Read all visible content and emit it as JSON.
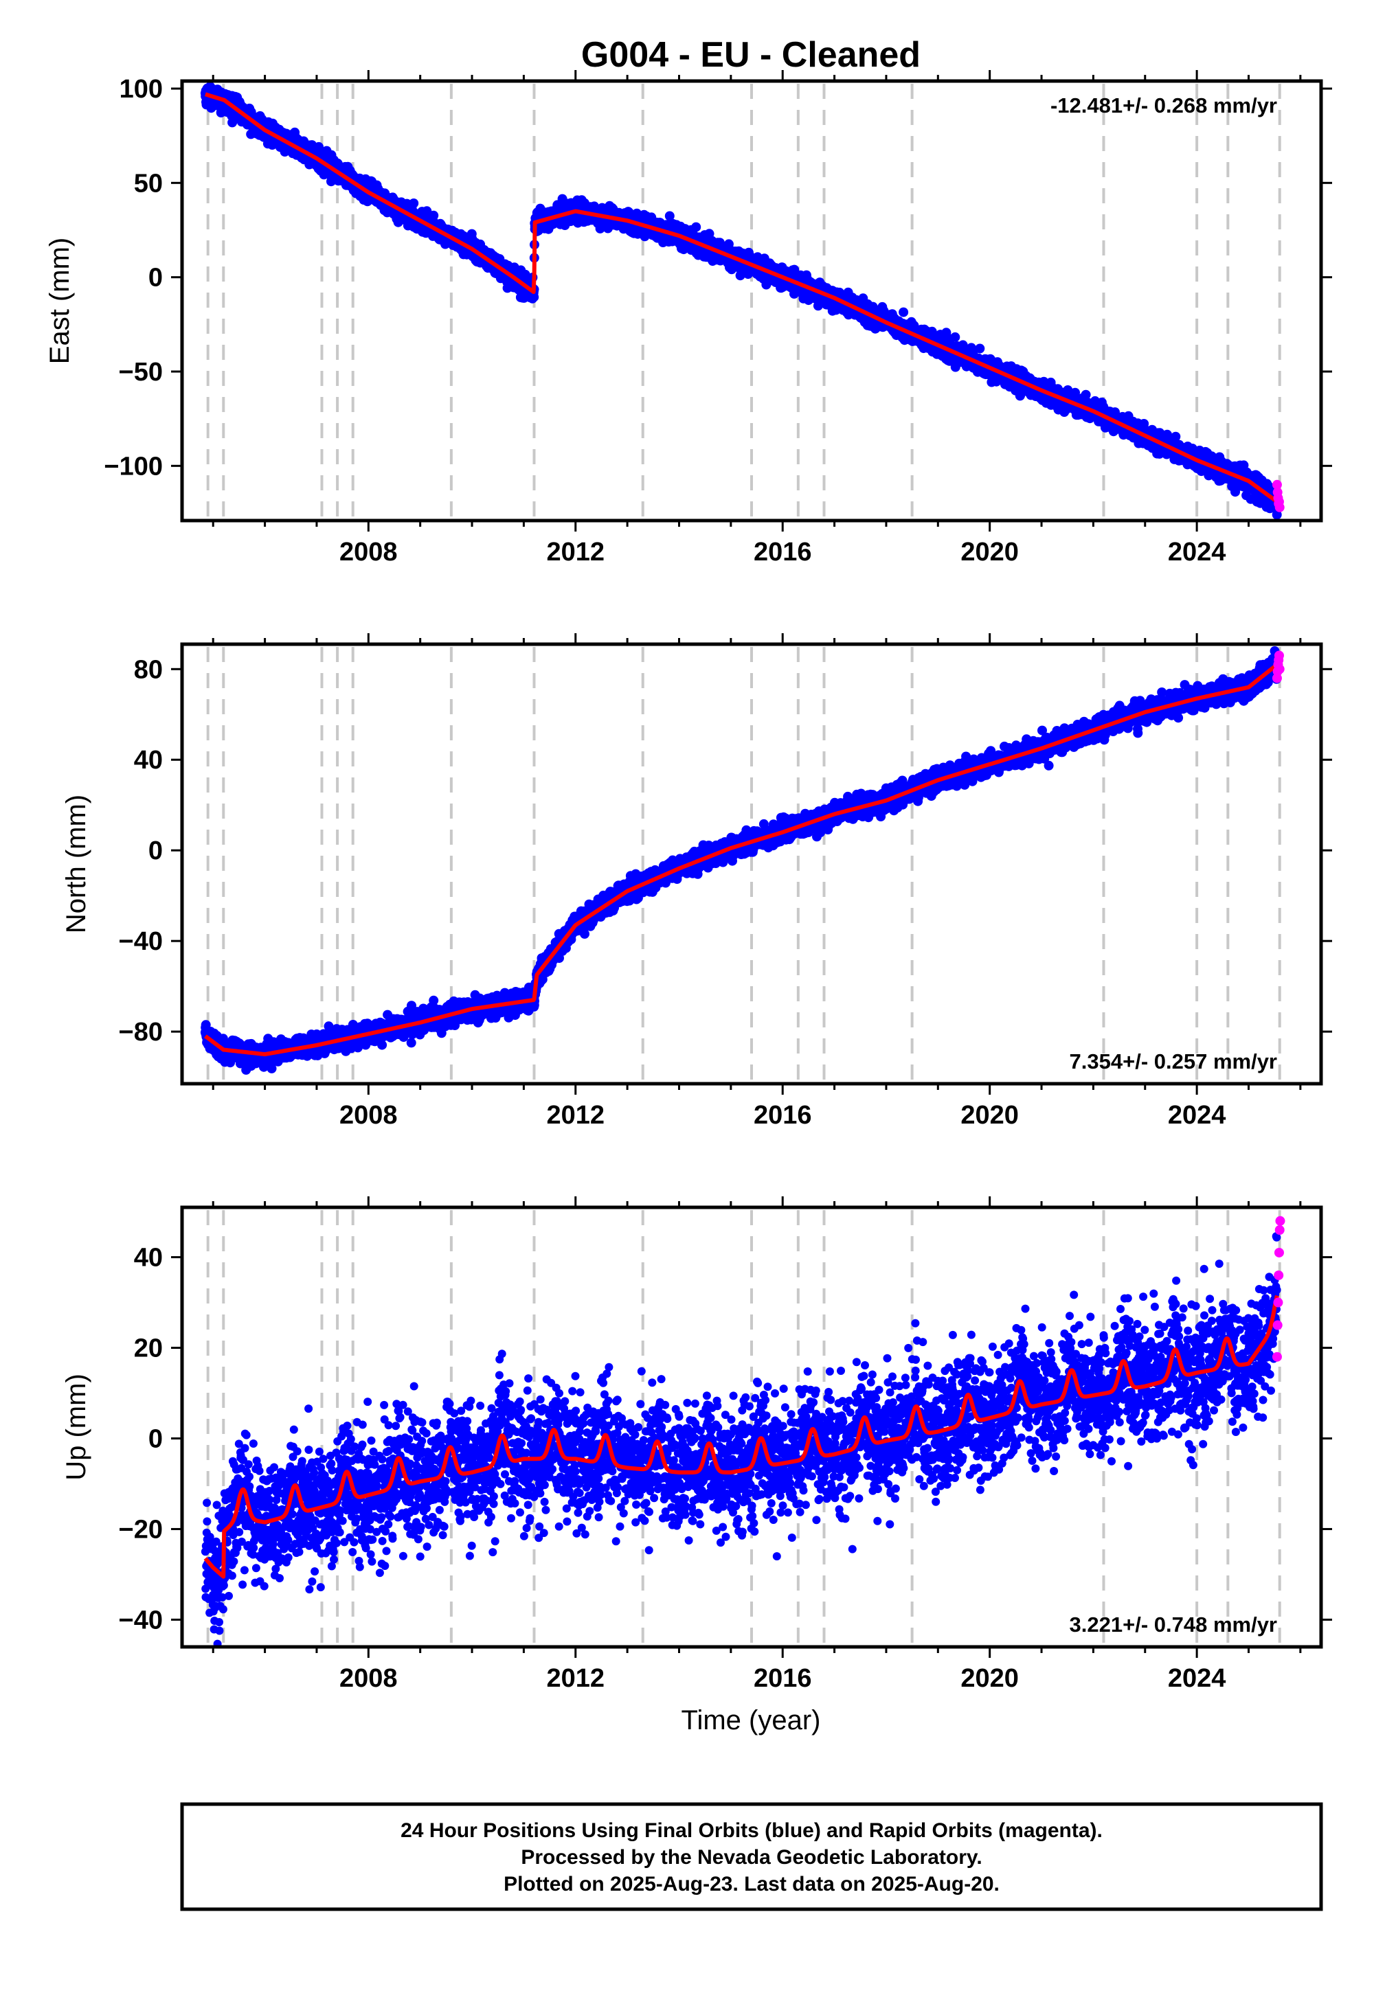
{
  "figure": {
    "title": "G004  - EU - Cleaned",
    "xlabel": "Time (year)",
    "footer": [
      "24 Hour Positions Using Final Orbits (blue) and Rapid Orbits (magenta).",
      "Processed by the Nevada Geodetic Laboratory.",
      "Plotted on 2025-Aug-23. Last data on 2025-Aug-20."
    ]
  },
  "colors": {
    "final": "#0000ff",
    "rapid": "#ff00ff",
    "model": "#ff0000",
    "event_lines": "#c8c8c8"
  },
  "chart_data": [
    {
      "type": "scatter",
      "panel": "east",
      "ylabel": "East (mm)",
      "rate_text": "-12.481+/- 0.268 mm/yr",
      "rate_placement": "top-right",
      "xlim": [
        2004.4,
        2026.4
      ],
      "ylim": [
        -129,
        104
      ],
      "xticks": [
        2008,
        2012,
        2016,
        2020,
        2024
      ],
      "xtick_labels": [
        "2008",
        "2012",
        "2016",
        "2020",
        "2024"
      ],
      "yticks": [
        100,
        50,
        0,
        -50,
        -100
      ],
      "ytick_labels": [
        "100",
        "50",
        "0",
        "−50",
        "−100"
      ],
      "event_lines": [
        2004.9,
        2005.2,
        2007.1,
        2007.4,
        2007.7,
        2009.6,
        2011.2,
        2013.3,
        2015.4,
        2016.3,
        2016.8,
        2018.5,
        2022.2,
        2024.0,
        2024.6,
        2025.6
      ],
      "series": [
        {
          "role": "final",
          "kind": "noisy",
          "noise": 2.5,
          "density": 1.3,
          "x": [
            2004.85,
            2005.2,
            2005.21,
            2006,
            2007,
            2008,
            2009,
            2010,
            2010.8,
            2011.2,
            2011.21,
            2012,
            2013,
            2014,
            2015,
            2016,
            2017,
            2018,
            2019,
            2020,
            2021,
            2022,
            2023,
            2024,
            2025,
            2025.55
          ],
          "y": [
            97,
            94,
            94,
            78,
            63,
            45,
            30,
            15,
            0,
            -8,
            29,
            35,
            30,
            22,
            11,
            0,
            -11,
            -24,
            -36,
            -48,
            -60,
            -71,
            -84,
            -97,
            -108,
            -119
          ]
        },
        {
          "role": "model",
          "kind": "line",
          "x": [
            2004.85,
            2005.2,
            2005.21,
            2006,
            2007,
            2008,
            2009,
            2010,
            2010.8,
            2011.2,
            2011.21,
            2012,
            2013,
            2014,
            2015,
            2016,
            2017,
            2018,
            2019,
            2020,
            2021,
            2022,
            2023,
            2024,
            2025,
            2025.55
          ],
          "y": [
            97,
            94,
            94,
            78,
            63,
            45,
            30,
            15,
            0,
            -8,
            29,
            35,
            30,
            22,
            11,
            0,
            -11,
            -24,
            -36,
            -48,
            -60,
            -71,
            -84,
            -97,
            -108,
            -119
          ]
        },
        {
          "role": "rapid",
          "kind": "points",
          "x": [
            2025.55,
            2025.56,
            2025.57,
            2025.58,
            2025.59,
            2025.6
          ],
          "y": [
            -110,
            -114,
            -117,
            -120,
            -119,
            -122
          ]
        }
      ]
    },
    {
      "type": "scatter",
      "panel": "north",
      "ylabel": "North (mm)",
      "rate_text": "7.354+/- 0.257 mm/yr",
      "rate_placement": "bottom-right",
      "xlim": [
        2004.4,
        2026.4
      ],
      "ylim": [
        -103,
        91
      ],
      "xticks": [
        2008,
        2012,
        2016,
        2020,
        2024
      ],
      "xtick_labels": [
        "2008",
        "2012",
        "2016",
        "2020",
        "2024"
      ],
      "yticks": [
        80,
        40,
        0,
        -40,
        -80
      ],
      "ytick_labels": [
        "80",
        "40",
        "0",
        "−40",
        "−80"
      ],
      "event_lines": [
        2004.9,
        2005.2,
        2007.1,
        2007.4,
        2007.7,
        2009.6,
        2011.2,
        2013.3,
        2015.4,
        2016.3,
        2016.8,
        2018.5,
        2022.2,
        2024.0,
        2024.6,
        2025.6
      ],
      "series": [
        {
          "role": "final",
          "kind": "noisy",
          "noise": 2.2,
          "density": 1.3,
          "x": [
            2004.85,
            2005.2,
            2006,
            2007,
            2008,
            2009,
            2010,
            2011.2,
            2011.25,
            2012,
            2013,
            2014,
            2015,
            2016,
            2017,
            2018,
            2019,
            2020,
            2021,
            2022,
            2023,
            2024,
            2025,
            2025.55
          ],
          "y": [
            -82,
            -88,
            -90,
            -86,
            -81,
            -76,
            -70,
            -66,
            -55,
            -33,
            -18,
            -8,
            1,
            8,
            16,
            22,
            31,
            38,
            45,
            53,
            61,
            67,
            72,
            82
          ]
        },
        {
          "role": "model",
          "kind": "line",
          "x": [
            2004.85,
            2005.2,
            2006,
            2007,
            2008,
            2009,
            2010,
            2011.2,
            2011.25,
            2012,
            2013,
            2014,
            2015,
            2016,
            2017,
            2018,
            2019,
            2020,
            2021,
            2022,
            2023,
            2024,
            2025,
            2025.55
          ],
          "y": [
            -82,
            -88,
            -90,
            -86,
            -81,
            -76,
            -70,
            -66,
            -55,
            -33,
            -18,
            -8,
            1,
            8,
            16,
            22,
            31,
            38,
            45,
            53,
            61,
            67,
            72,
            82
          ]
        },
        {
          "role": "rapid",
          "kind": "points",
          "x": [
            2025.55,
            2025.56,
            2025.57,
            2025.58,
            2025.59,
            2025.6
          ],
          "y": [
            76,
            79,
            82,
            84,
            86,
            80
          ]
        }
      ]
    },
    {
      "type": "scatter",
      "panel": "up",
      "ylabel": "Up (mm)",
      "rate_text": "3.221+/- 0.748 mm/yr",
      "rate_placement": "bottom-right",
      "xlim": [
        2004.4,
        2026.4
      ],
      "ylim": [
        -46,
        51
      ],
      "xticks": [
        2008,
        2012,
        2016,
        2020,
        2024
      ],
      "xtick_labels": [
        "2008",
        "2012",
        "2016",
        "2020",
        "2024"
      ],
      "yticks": [
        40,
        20,
        0,
        -20,
        -40
      ],
      "ytick_labels": [
        "40",
        "20",
        "0",
        "−20",
        "−40"
      ],
      "event_lines": [
        2004.9,
        2005.2,
        2007.1,
        2007.4,
        2007.7,
        2009.6,
        2011.2,
        2013.3,
        2015.4,
        2016.3,
        2016.8,
        2018.5,
        2022.2,
        2024.0,
        2024.6,
        2025.6
      ],
      "series": [
        {
          "role": "final",
          "kind": "noisy",
          "noise": 6.5,
          "density": 1.5,
          "x": [
            2004.85,
            2005.0,
            2005.2,
            2005.21,
            2005.5,
            2006.0,
            2007.0,
            2008.0,
            2009.0,
            2010.0,
            2011.0,
            2012.0,
            2013.0,
            2014.0,
            2015.0,
            2016.0,
            2017.0,
            2018.0,
            2019.0,
            2020.0,
            2021.0,
            2022.0,
            2023.0,
            2024.0,
            2025.0,
            2025.55
          ],
          "y": [
            -25,
            -27,
            -29,
            -19,
            -16,
            -17,
            -14,
            -11,
            -8,
            -6,
            -3,
            -3,
            -5,
            -6,
            -6,
            -4,
            -2,
            1,
            3,
            6,
            9,
            11,
            13,
            16,
            18,
            27
          ]
        },
        {
          "role": "model",
          "kind": "seasonal",
          "amplitude": 4,
          "x": [
            2004.85,
            2005.0,
            2005.2,
            2005.21,
            2005.5,
            2006.0,
            2007.0,
            2008.0,
            2009.0,
            2010.0,
            2011.0,
            2012.0,
            2013.0,
            2014.0,
            2015.0,
            2016.0,
            2017.0,
            2018.0,
            2019.0,
            2020.0,
            2021.0,
            2022.0,
            2023.0,
            2024.0,
            2025.0,
            2025.55
          ],
          "y": [
            -25,
            -27,
            -29,
            -19,
            -16,
            -17,
            -14,
            -11,
            -8,
            -6,
            -3,
            -3,
            -5,
            -6,
            -6,
            -4,
            -2,
            1,
            3,
            6,
            9,
            11,
            13,
            16,
            18,
            27
          ]
        },
        {
          "role": "rapid",
          "kind": "points",
          "x": [
            2025.55,
            2025.56,
            2025.57,
            2025.58,
            2025.59,
            2025.6,
            2025.61
          ],
          "y": [
            18,
            25,
            30,
            36,
            41,
            46,
            48
          ]
        }
      ]
    }
  ]
}
